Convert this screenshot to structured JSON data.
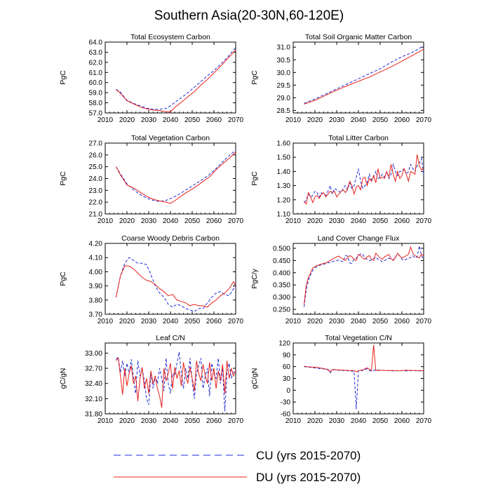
{
  "figure": {
    "title": "Southern Asia(20-30N,60-120E)",
    "colors": {
      "cu": "#1f2bd6",
      "du": "#e8231d",
      "axis": "#000000"
    },
    "legend": [
      {
        "key": "cu",
        "label": "CU (yrs 2015-2070)",
        "style": "dashed"
      },
      {
        "key": "du",
        "label": "DU (yrs 2015-2070)",
        "style": "solid"
      }
    ]
  },
  "chart_data": [
    {
      "type": "line",
      "title": "Total Ecosystem Carbon",
      "xlabel": "",
      "ylabel": "PgC",
      "xlim": [
        2010,
        2070
      ],
      "ylim": [
        57.0,
        64.0
      ],
      "xticks": [
        2010,
        2020,
        2030,
        2040,
        2050,
        2060,
        2070
      ],
      "yticks": [
        57.0,
        58.0,
        59.0,
        60.0,
        61.0,
        62.0,
        63.0,
        64.0
      ],
      "ytick_decimals": 1,
      "x": [
        2015,
        2017,
        2020,
        2023,
        2026,
        2029,
        2032,
        2035,
        2038,
        2040,
        2042,
        2045,
        2048,
        2051,
        2054,
        2057,
        2060,
        2063,
        2066,
        2070
      ],
      "series": [
        {
          "name": "CU",
          "values": [
            59.35,
            59.05,
            58.25,
            57.95,
            57.7,
            57.48,
            57.35,
            57.35,
            57.45,
            57.7,
            58.05,
            58.5,
            59.0,
            59.55,
            60.1,
            60.65,
            61.2,
            61.8,
            62.45,
            63.45
          ]
        },
        {
          "name": "DU",
          "values": [
            59.3,
            58.95,
            58.2,
            57.9,
            57.6,
            57.4,
            57.3,
            57.22,
            57.12,
            57.1,
            57.55,
            58.05,
            58.6,
            59.1,
            59.75,
            60.3,
            60.95,
            61.6,
            62.3,
            63.2
          ]
        }
      ]
    },
    {
      "type": "line",
      "title": "Total Soil Organic Matter Carbon",
      "xlabel": "",
      "ylabel": "PgC",
      "xlim": [
        2010,
        2070
      ],
      "ylim": [
        28.4,
        31.2
      ],
      "xticks": [
        2010,
        2020,
        2030,
        2040,
        2050,
        2060,
        2070
      ],
      "yticks": [
        28.5,
        29.0,
        29.5,
        30.0,
        30.5,
        31.0
      ],
      "ytick_decimals": 1,
      "x": [
        2015,
        2020,
        2025,
        2030,
        2035,
        2040,
        2045,
        2050,
        2055,
        2060,
        2065,
        2070
      ],
      "series": [
        {
          "name": "CU",
          "values": [
            28.78,
            28.95,
            29.15,
            29.35,
            29.55,
            29.75,
            29.95,
            30.15,
            30.4,
            30.62,
            30.8,
            31.05
          ]
        },
        {
          "name": "DU",
          "values": [
            28.75,
            28.9,
            29.1,
            29.3,
            29.48,
            29.65,
            29.82,
            30.02,
            30.22,
            30.45,
            30.68,
            30.92
          ]
        }
      ]
    },
    {
      "type": "line",
      "title": "Total Vegetation Carbon",
      "xlabel": "",
      "ylabel": "PgC",
      "xlim": [
        2010,
        2070
      ],
      "ylim": [
        21.0,
        27.0
      ],
      "xticks": [
        2010,
        2020,
        2030,
        2040,
        2050,
        2060,
        2070
      ],
      "yticks": [
        21.0,
        22.0,
        23.0,
        24.0,
        25.0,
        26.0,
        27.0
      ],
      "ytick_decimals": 1,
      "x": [
        2015,
        2017,
        2020,
        2023,
        2026,
        2029,
        2032,
        2035,
        2038,
        2040,
        2043,
        2046,
        2049,
        2052,
        2055,
        2058,
        2061,
        2064,
        2067,
        2070
      ],
      "series": [
        {
          "name": "CU",
          "values": [
            25.0,
            24.4,
            23.55,
            23.05,
            22.65,
            22.35,
            22.15,
            22.05,
            22.15,
            22.3,
            22.55,
            22.9,
            23.25,
            23.6,
            23.95,
            24.35,
            24.85,
            25.4,
            25.95,
            26.4
          ]
        },
        {
          "name": "DU",
          "values": [
            25.0,
            24.3,
            23.45,
            23.2,
            22.85,
            22.5,
            22.25,
            22.1,
            22.0,
            21.9,
            22.25,
            22.65,
            23.0,
            23.35,
            23.75,
            24.15,
            24.75,
            25.25,
            25.7,
            26.25
          ]
        }
      ]
    },
    {
      "type": "line",
      "title": "Total Litter Carbon",
      "xlabel": "",
      "ylabel": "PgC",
      "xlim": [
        2010,
        2070
      ],
      "ylim": [
        1.1,
        1.6
      ],
      "xticks": [
        2010,
        2020,
        2030,
        2040,
        2050,
        2060,
        2070
      ],
      "yticks": [
        1.1,
        1.2,
        1.3,
        1.4,
        1.5,
        1.6
      ],
      "ytick_decimals": 2,
      "x": [
        2015,
        2016,
        2017,
        2018,
        2019,
        2020,
        2021,
        2022,
        2023,
        2024,
        2025,
        2026,
        2027,
        2028,
        2029,
        2030,
        2031,
        2032,
        2033,
        2034,
        2035,
        2036,
        2037,
        2038,
        2039,
        2040,
        2041,
        2042,
        2043,
        2044,
        2045,
        2046,
        2047,
        2048,
        2049,
        2050,
        2051,
        2052,
        2053,
        2054,
        2055,
        2056,
        2057,
        2058,
        2059,
        2060,
        2061,
        2062,
        2063,
        2064,
        2065,
        2066,
        2067,
        2068,
        2069,
        2070
      ],
      "series": [
        {
          "name": "CU",
          "values": [
            1.18,
            1.2,
            1.24,
            1.22,
            1.23,
            1.26,
            1.25,
            1.22,
            1.25,
            1.24,
            1.23,
            1.26,
            1.3,
            1.24,
            1.28,
            1.27,
            1.26,
            1.25,
            1.28,
            1.3,
            1.27,
            1.32,
            1.28,
            1.3,
            1.36,
            1.42,
            1.33,
            1.28,
            1.3,
            1.32,
            1.38,
            1.34,
            1.36,
            1.4,
            1.35,
            1.36,
            1.38,
            1.36,
            1.4,
            1.35,
            1.38,
            1.45,
            1.4,
            1.37,
            1.4,
            1.4,
            1.42,
            1.38,
            1.4,
            1.45,
            1.42,
            1.4,
            1.44,
            1.46,
            1.49,
            1.38
          ]
        },
        {
          "name": "DU",
          "values": [
            1.19,
            1.17,
            1.25,
            1.22,
            1.18,
            1.22,
            1.23,
            1.21,
            1.24,
            1.25,
            1.22,
            1.24,
            1.26,
            1.25,
            1.26,
            1.22,
            1.24,
            1.26,
            1.27,
            1.25,
            1.28,
            1.33,
            1.3,
            1.24,
            1.29,
            1.3,
            1.27,
            1.35,
            1.36,
            1.3,
            1.35,
            1.33,
            1.37,
            1.32,
            1.42,
            1.35,
            1.36,
            1.35,
            1.4,
            1.36,
            1.45,
            1.38,
            1.33,
            1.4,
            1.35,
            1.37,
            1.42,
            1.38,
            1.33,
            1.4,
            1.39,
            1.38,
            1.52,
            1.44,
            1.41,
            1.42
          ]
        }
      ]
    },
    {
      "type": "line",
      "title": "Coarse Woody Debris Carbon",
      "xlabel": "",
      "ylabel": "PgC",
      "xlim": [
        2010,
        2070
      ],
      "ylim": [
        3.7,
        4.2
      ],
      "xticks": [
        2010,
        2020,
        2030,
        2040,
        2050,
        2060,
        2070
      ],
      "yticks": [
        3.7,
        3.8,
        3.9,
        4.0,
        4.1,
        4.2
      ],
      "ytick_decimals": 2,
      "x": [
        2015,
        2017,
        2019,
        2021,
        2023,
        2025,
        2027,
        2029,
        2031,
        2033,
        2035,
        2037,
        2039,
        2041,
        2043,
        2045,
        2047,
        2049,
        2051,
        2053,
        2055,
        2057,
        2059,
        2061,
        2063,
        2065,
        2067,
        2069,
        2070
      ],
      "series": [
        {
          "name": "CU",
          "values": [
            3.82,
            3.97,
            4.06,
            4.1,
            4.08,
            4.06,
            4.06,
            4.05,
            3.98,
            3.9,
            3.85,
            3.82,
            3.77,
            3.75,
            3.77,
            3.76,
            3.74,
            3.73,
            3.72,
            3.74,
            3.74,
            3.78,
            3.82,
            3.85,
            3.86,
            3.84,
            3.83,
            3.88,
            3.92
          ]
        },
        {
          "name": "DU",
          "values": [
            3.82,
            3.97,
            4.04,
            4.04,
            4.02,
            3.99,
            3.96,
            3.94,
            3.93,
            3.91,
            3.88,
            3.86,
            3.83,
            3.84,
            3.8,
            3.79,
            3.78,
            3.76,
            3.77,
            3.76,
            3.76,
            3.75,
            3.78,
            3.8,
            3.83,
            3.85,
            3.88,
            3.93,
            3.9
          ]
        }
      ]
    },
    {
      "type": "line",
      "title": "Land Cover Change Flux",
      "xlabel": "",
      "ylabel": "PgC/y",
      "xlim": [
        2010,
        2070
      ],
      "ylim": [
        0.23,
        0.52
      ],
      "xticks": [
        2010,
        2020,
        2030,
        2040,
        2050,
        2060,
        2070
      ],
      "yticks": [
        0.25,
        0.3,
        0.35,
        0.4,
        0.45,
        0.5
      ],
      "ytick_decimals": 3,
      "x": [
        2015,
        2016,
        2017,
        2018,
        2019,
        2020,
        2021,
        2022,
        2023,
        2024,
        2025,
        2026,
        2027,
        2028,
        2029,
        2030,
        2031,
        2032,
        2033,
        2034,
        2035,
        2036,
        2037,
        2038,
        2039,
        2040,
        2041,
        2042,
        2043,
        2044,
        2045,
        2046,
        2047,
        2048,
        2049,
        2050,
        2051,
        2052,
        2053,
        2054,
        2055,
        2056,
        2057,
        2058,
        2059,
        2060,
        2061,
        2062,
        2063,
        2064,
        2065,
        2066,
        2067,
        2068,
        2069,
        2070
      ],
      "series": [
        {
          "name": "CU",
          "values": [
            0.26,
            0.33,
            0.37,
            0.39,
            0.41,
            0.42,
            0.425,
            0.43,
            0.432,
            0.435,
            0.437,
            0.44,
            0.442,
            0.445,
            0.448,
            0.45,
            0.452,
            0.448,
            0.445,
            0.47,
            0.468,
            0.44,
            0.438,
            0.455,
            0.46,
            0.468,
            0.478,
            0.475,
            0.46,
            0.455,
            0.45,
            0.452,
            0.458,
            0.465,
            0.455,
            0.45,
            0.445,
            0.45,
            0.455,
            0.46,
            0.455,
            0.452,
            0.465,
            0.475,
            0.47,
            0.455,
            0.45,
            0.455,
            0.46,
            0.462,
            0.47,
            0.46,
            0.465,
            0.51,
            0.47,
            0.455
          ]
        },
        {
          "name": "DU",
          "values": [
            0.27,
            0.35,
            0.38,
            0.4,
            0.42,
            0.425,
            0.43,
            0.432,
            0.436,
            0.438,
            0.44,
            0.445,
            0.45,
            0.455,
            0.46,
            0.465,
            0.468,
            0.46,
            0.455,
            0.45,
            0.462,
            0.47,
            0.465,
            0.455,
            0.45,
            0.475,
            0.47,
            0.46,
            0.455,
            0.465,
            0.47,
            0.455,
            0.45,
            0.48,
            0.47,
            0.46,
            0.455,
            0.465,
            0.47,
            0.475,
            0.458,
            0.45,
            0.462,
            0.48,
            0.468,
            0.46,
            0.465,
            0.47,
            0.475,
            0.505,
            0.48,
            0.47,
            0.465,
            0.46,
            0.475,
            0.47
          ]
        }
      ]
    },
    {
      "type": "line",
      "title": "Leaf C/N",
      "xlabel": "",
      "ylabel": "gC/gN",
      "xlim": [
        2010,
        2070
      ],
      "ylim": [
        31.8,
        33.2
      ],
      "xticks": [
        2010,
        2020,
        2030,
        2040,
        2050,
        2060,
        2070
      ],
      "yticks": [
        31.8,
        32.1,
        32.4,
        32.7,
        33.0
      ],
      "ytick_decimals": 2,
      "x": [
        2015,
        2016,
        2017,
        2018,
        2019,
        2020,
        2021,
        2022,
        2023,
        2024,
        2025,
        2026,
        2027,
        2028,
        2029,
        2030,
        2031,
        2032,
        2033,
        2034,
        2035,
        2036,
        2037,
        2038,
        2039,
        2040,
        2041,
        2042,
        2043,
        2044,
        2045,
        2046,
        2047,
        2048,
        2049,
        2050,
        2051,
        2052,
        2053,
        2054,
        2055,
        2056,
        2057,
        2058,
        2059,
        2060,
        2061,
        2062,
        2063,
        2064,
        2065,
        2066,
        2067,
        2068,
        2069,
        2070
      ],
      "series": [
        {
          "name": "CU",
          "values": [
            32.88,
            32.92,
            32.62,
            32.85,
            32.55,
            32.8,
            32.6,
            32.88,
            32.5,
            32.2,
            32.85,
            32.55,
            32.7,
            32.45,
            32.1,
            31.98,
            32.6,
            32.3,
            32.55,
            32.4,
            32.7,
            32.5,
            32.25,
            32.9,
            32.4,
            32.2,
            32.6,
            32.55,
            32.8,
            33.02,
            32.6,
            32.3,
            32.7,
            32.5,
            32.9,
            32.45,
            32.1,
            32.6,
            32.75,
            32.9,
            32.3,
            32.55,
            32.7,
            32.15,
            32.8,
            32.6,
            32.5,
            32.9,
            32.4,
            32.7,
            31.85,
            32.6,
            32.8,
            32.5,
            32.65,
            32.6
          ]
        },
        {
          "name": "DU",
          "values": [
            32.85,
            32.9,
            32.55,
            32.18,
            32.7,
            32.35,
            32.6,
            32.75,
            32.4,
            32.55,
            32.05,
            32.5,
            32.72,
            32.3,
            32.5,
            32.2,
            32.65,
            32.4,
            32.55,
            32.3,
            32.15,
            31.92,
            32.7,
            32.45,
            32.6,
            32.8,
            32.3,
            32.72,
            32.5,
            32.65,
            32.35,
            32.82,
            32.55,
            32.4,
            32.72,
            32.5,
            32.25,
            32.85,
            32.6,
            32.45,
            32.78,
            32.55,
            32.4,
            32.82,
            32.45,
            32.7,
            32.3,
            32.65,
            32.45,
            32.78,
            32.2,
            32.85,
            32.5,
            32.7,
            32.55,
            32.65
          ]
        }
      ]
    },
    {
      "type": "line",
      "title": "Total Vegetation C/N",
      "xlabel": "",
      "ylabel": "gC/gN",
      "xlim": [
        2010,
        2070
      ],
      "ylim": [
        -60,
        120
      ],
      "xticks": [
        2010,
        2020,
        2030,
        2040,
        2050,
        2060,
        2070
      ],
      "yticks": [
        -60,
        -30,
        0,
        30,
        60,
        90,
        120
      ],
      "ytick_decimals": 0,
      "x": [
        2015,
        2018,
        2021,
        2024,
        2026,
        2027,
        2028,
        2030,
        2033,
        2036,
        2038,
        2039,
        2040,
        2042,
        2044,
        2046,
        2047,
        2048,
        2050,
        2053,
        2056,
        2059,
        2062,
        2065,
        2068,
        2070
      ],
      "series": [
        {
          "name": "CU",
          "values": [
            60,
            58,
            56,
            54,
            52,
            44,
            52,
            51,
            50,
            49,
            48,
            -48,
            50,
            50,
            55,
            48,
            50,
            52,
            51,
            50,
            49,
            50,
            49,
            50,
            49,
            49
          ]
        },
        {
          "name": "DU",
          "values": [
            61,
            59,
            58,
            55,
            53,
            47,
            53,
            52,
            51,
            50,
            50,
            47,
            50,
            52,
            57,
            50,
            115,
            50,
            51,
            50,
            50,
            49,
            51,
            50,
            50,
            49
          ]
        }
      ]
    }
  ]
}
